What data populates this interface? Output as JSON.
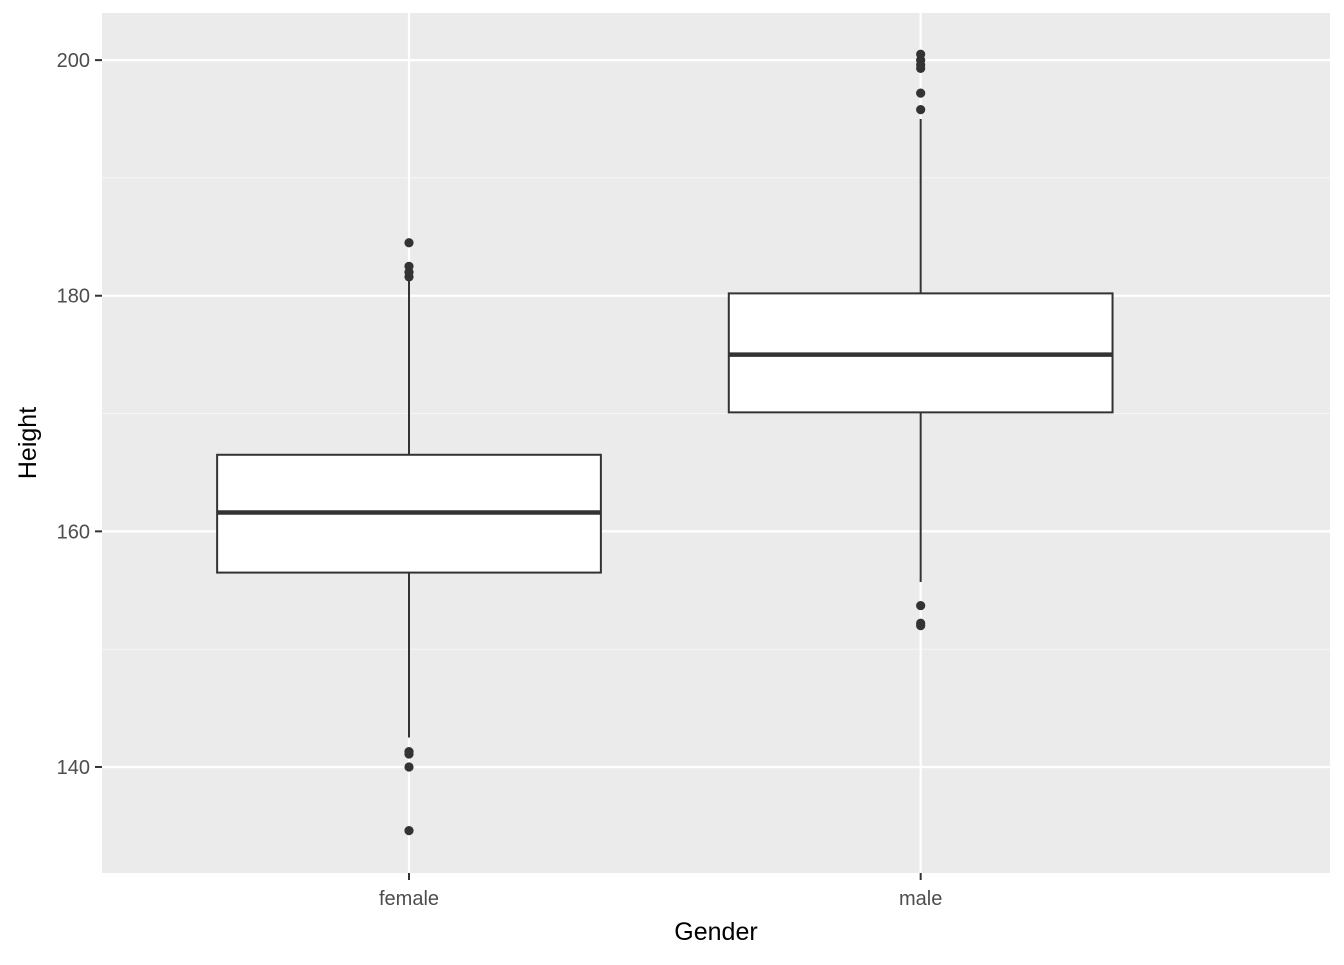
{
  "chart_data": {
    "type": "boxplot",
    "xlabel": "Gender",
    "ylabel": "Height",
    "categories": [
      "female",
      "male"
    ],
    "ylim": [
      131,
      204
    ],
    "yticks": [
      140,
      160,
      180,
      200
    ],
    "grid": true,
    "boxes": [
      {
        "category": "female",
        "lower_whisker": 142.5,
        "q1": 156.5,
        "median": 161.6,
        "q3": 166.5,
        "upper_whisker": 181.3,
        "outliers": [
          184.5,
          182.5,
          182.0,
          181.6,
          141.3,
          141.1,
          140.0,
          134.6
        ]
      },
      {
        "category": "male",
        "lower_whisker": 155.7,
        "q1": 170.1,
        "median": 175.0,
        "q3": 180.2,
        "upper_whisker": 195.0,
        "outliers": [
          200.5,
          200.0,
          199.6,
          199.3,
          197.2,
          195.8,
          153.7,
          152.2,
          152.0
        ]
      }
    ],
    "colors": {
      "panel_background": "#ebebeb",
      "grid_major": "#ffffff",
      "grid_minor": "#f5f5f5",
      "box_fill": "#ffffff",
      "box_outline": "#333333",
      "tick_text": "#4d4d4d",
      "title_text": "#000000"
    }
  }
}
